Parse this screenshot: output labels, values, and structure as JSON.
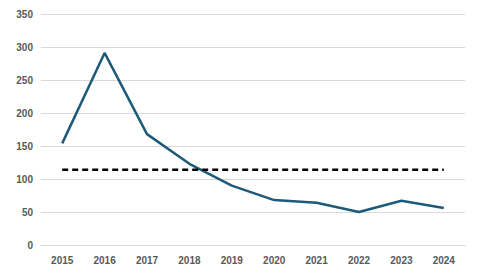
{
  "chart_data": {
    "type": "line",
    "categories": [
      "2015",
      "2016",
      "2017",
      "2018",
      "2019",
      "2020",
      "2021",
      "2022",
      "2023",
      "2024"
    ],
    "series": [
      {
        "color": "#1d5a7a",
        "line_style": "solid",
        "values": [
          154,
          291,
          168,
          123,
          90,
          68,
          64,
          50,
          67,
          56
        ]
      },
      {
        "color": "#000000",
        "line_style": "dashed",
        "values": [
          114,
          114,
          114,
          114,
          114,
          114,
          114,
          114,
          114,
          114
        ]
      }
    ],
    "ylim": [
      0,
      350
    ],
    "yticks": [
      0,
      50,
      100,
      150,
      200,
      250,
      300,
      350
    ],
    "grid": true
  }
}
